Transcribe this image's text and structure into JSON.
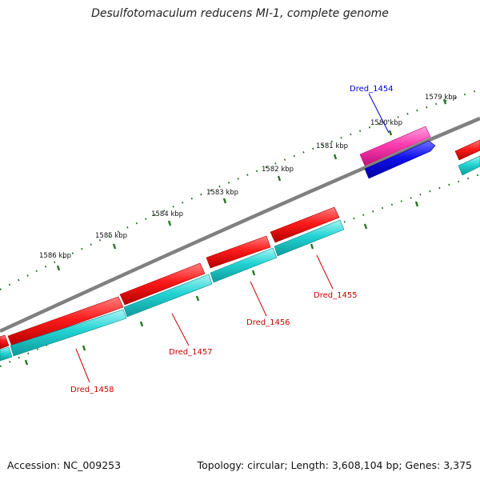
{
  "title": "Desulfotomaculum reducens MI-1, complete genome",
  "accession": "Accession: NC_009253",
  "topology": "Topology: circular; Length: 3,608,104 bp; Genes: 3,375",
  "kbp_labels": [
    "1579 kbp",
    "1580 kbp",
    "1581 kbp",
    "1582 kbp",
    "1583 kbp",
    "1584 kbp",
    "1585 kbp",
    "1586 kbp"
  ],
  "gene_labels": [
    {
      "text": "Dred_1454",
      "color": "#0000cc"
    },
    {
      "text": "Dred_1455",
      "color": "#cc0000"
    },
    {
      "text": "Dred_1456",
      "color": "#cc0000"
    },
    {
      "text": "Dred_1457",
      "color": "#cc0000"
    },
    {
      "text": "Dred_1458",
      "color": "#cc0000"
    }
  ],
  "colors": {
    "backbone": "#808080",
    "forward_cds": "#ff1a1a",
    "reverse_cds": "#22d3d3",
    "highlight_forward": "#ff3fb0",
    "highlight_reverse": "#1010ee",
    "tick": "#227722"
  }
}
